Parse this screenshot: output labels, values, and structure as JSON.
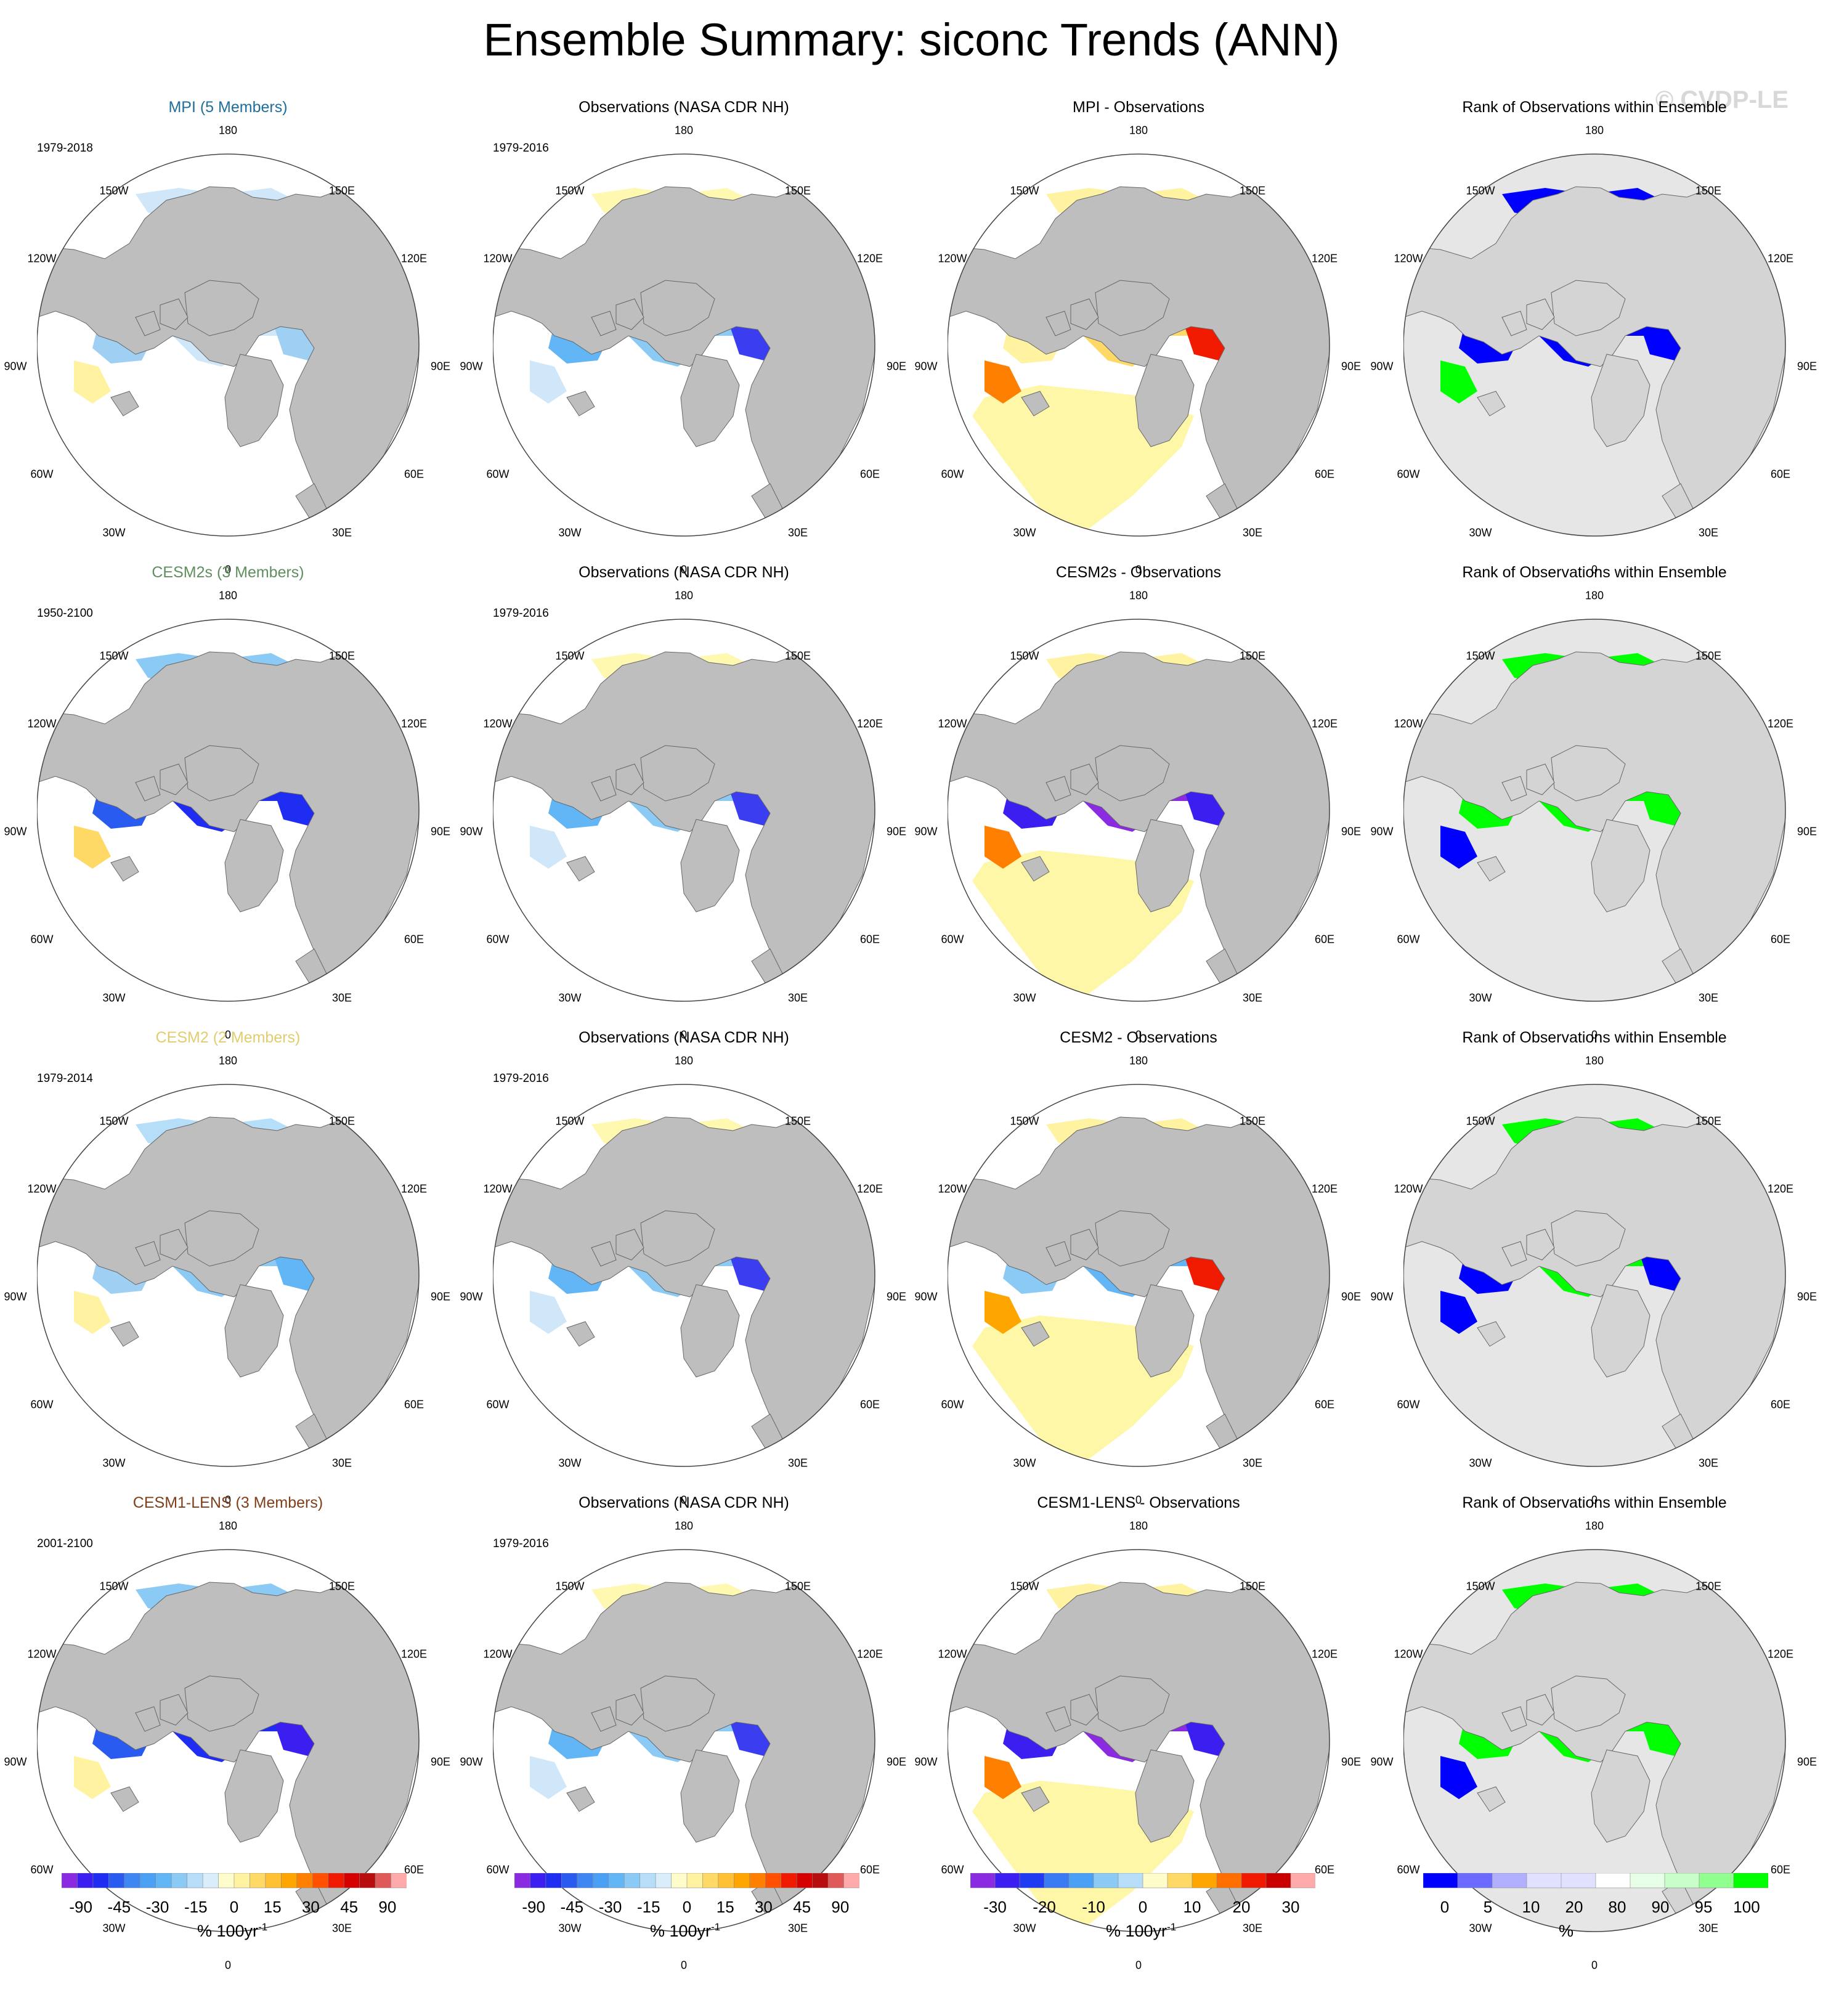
{
  "title": "Ensemble Summary: siconc Trends (ANN)",
  "watermark": "© CVDP-LE",
  "colors": {
    "land": "#bebebe",
    "ocean": "#ffffff",
    "title_MPI": "#1f6f9a",
    "title_CESM2s": "#5f8f5f",
    "title_CESM2": "#e2cd6e",
    "title_CESM1-LENS": "#7f3f1a"
  },
  "longitude_labels": [
    "180",
    "150E",
    "120E",
    "90E",
    "60E",
    "30E",
    "0",
    "30W",
    "60W",
    "90W",
    "120W",
    "150W"
  ],
  "rows": [
    {
      "model": {
        "title": "MPI (5 Members)",
        "period": "1979-2018"
      },
      "obs": {
        "title": "Observations (NASA CDR NH)",
        "period": "1979-2016"
      },
      "diff": {
        "title": "MPI - Observations"
      },
      "rank": {
        "title": "Rank of Observations within Ensemble"
      }
    },
    {
      "model": {
        "title": "CESM2s (3 Members)",
        "period": "1950-2100"
      },
      "obs": {
        "title": "Observations (NASA CDR NH)",
        "period": "1979-2016"
      },
      "diff": {
        "title": "CESM2s - Observations"
      },
      "rank": {
        "title": "Rank of Observations within Ensemble"
      }
    },
    {
      "model": {
        "title": "CESM2 (2 Members)",
        "period": "1979-2014"
      },
      "obs": {
        "title": "Observations (NASA CDR NH)",
        "period": "1979-2016"
      },
      "diff": {
        "title": "CESM2 - Observations"
      },
      "rank": {
        "title": "Rank of Observations within Ensemble"
      }
    },
    {
      "model": {
        "title": "CESM1-LENS (3 Members)",
        "period": "2001-2100"
      },
      "obs": {
        "title": "Observations (NASA CDR NH)",
        "period": "1979-2016"
      },
      "diff": {
        "title": "CESM1-LENS - Observations"
      },
      "rank": {
        "title": "Rank of Observations within Ensemble"
      }
    }
  ],
  "colorbars": [
    {
      "unit": "% 100yr",
      "unit_exp": "-1",
      "colors": [
        "#8a2be2",
        "#3a1ff0",
        "#1f2cf2",
        "#2a5bf0",
        "#3f86f2",
        "#4aa0f4",
        "#62b6f6",
        "#8ccaf6",
        "#b6def8",
        "#d9edfb",
        "#fffccc",
        "#fff2a0",
        "#ffd966",
        "#ffc033",
        "#ffa500",
        "#ff7f00",
        "#ff4f00",
        "#f01a00",
        "#d60000",
        "#b80d0d",
        "#e05a5a",
        "#ffaaaa"
      ],
      "ticks": [
        "-90",
        "-45",
        "-30",
        "-15",
        "0",
        "15",
        "30",
        "45",
        "90"
      ]
    },
    {
      "unit": "% 100yr",
      "unit_exp": "-1",
      "colors": [
        "#8a2be2",
        "#3a1ff0",
        "#1f2cf2",
        "#2a5bf0",
        "#3f86f2",
        "#4aa0f4",
        "#62b6f6",
        "#8ccaf6",
        "#b6def8",
        "#d9edfb",
        "#fffccc",
        "#fff2a0",
        "#ffd966",
        "#ffc033",
        "#ffa500",
        "#ff7f00",
        "#ff4f00",
        "#f01a00",
        "#d60000",
        "#b80d0d",
        "#e05a5a",
        "#ffaaaa"
      ],
      "ticks": [
        "-90",
        "-45",
        "-30",
        "-15",
        "0",
        "15",
        "30",
        "45",
        "90"
      ]
    },
    {
      "unit": "% 100yr",
      "unit_exp": "-1",
      "colors": [
        "#8a2be2",
        "#3a1ff0",
        "#1f3cf2",
        "#3a7af2",
        "#4aa0f4",
        "#8ccaf6",
        "#b6def8",
        "#fffccc",
        "#ffd966",
        "#ffa500",
        "#ff6f00",
        "#f01a00",
        "#c80000",
        "#ffaaaa"
      ],
      "ticks": [
        "-30",
        "-20",
        "-10",
        "0",
        "10",
        "20",
        "30"
      ]
    },
    {
      "unit": "%",
      "unit_exp": "",
      "colors": [
        "#0000ff",
        "#6a6aff",
        "#b0b0ff",
        "#e0e0ff",
        "#e0e0ff",
        "#ffffff",
        "#e6ffe6",
        "#c8ffc8",
        "#90ff90",
        "#00ff00"
      ],
      "ticks": [
        "0",
        "5",
        "10",
        "20",
        "80",
        "90",
        "95",
        "100"
      ]
    }
  ]
}
